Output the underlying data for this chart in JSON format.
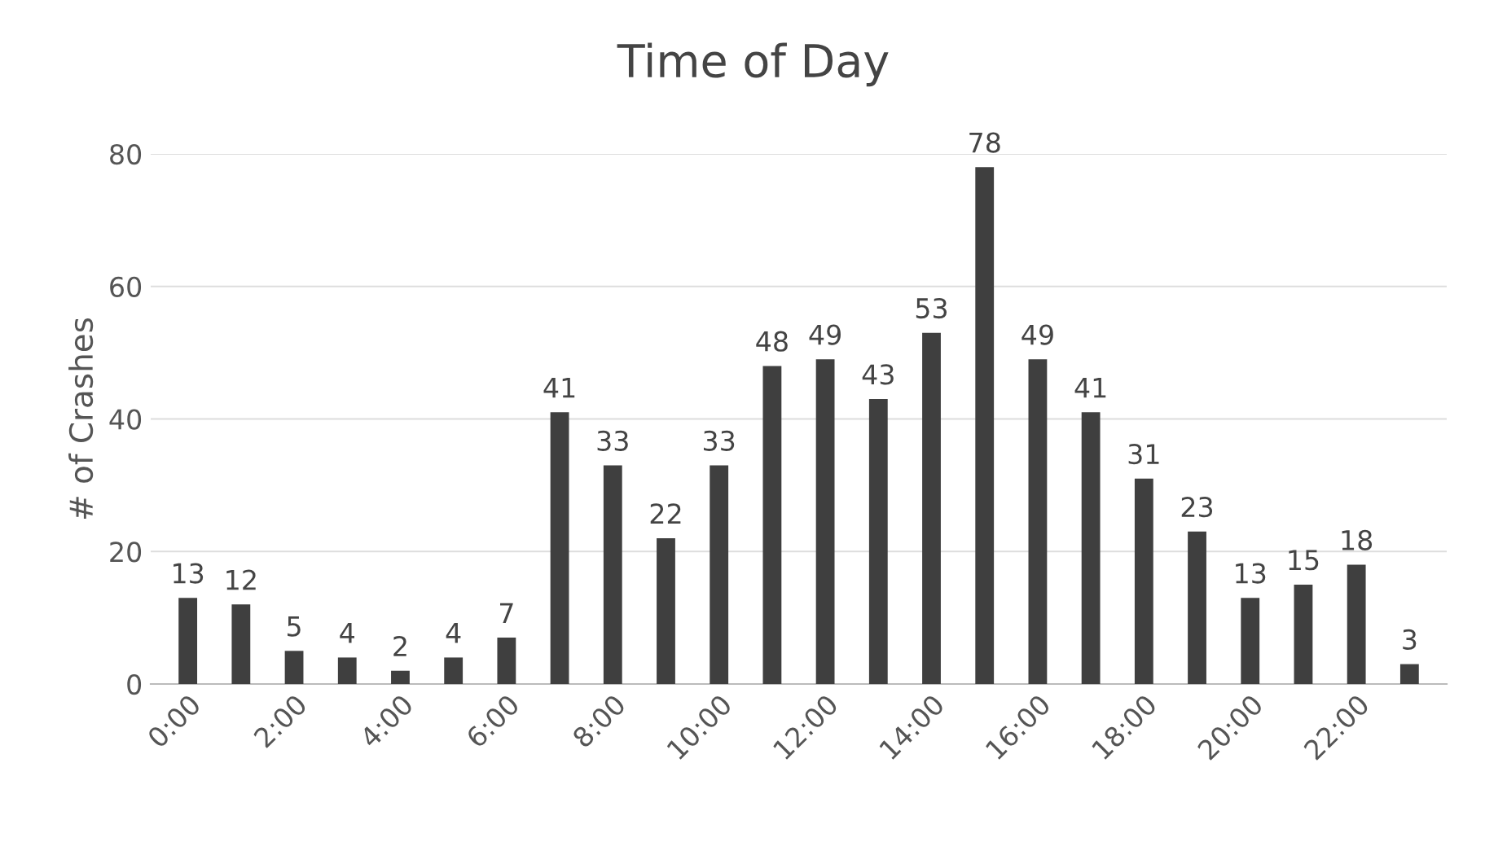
{
  "chart_data": {
    "type": "bar",
    "title": "Time of Day",
    "ylabel": "# of Crashes",
    "categories": [
      "0:00",
      null,
      "2:00",
      null,
      "4:00",
      null,
      "6:00",
      null,
      "8:00",
      null,
      "10:00",
      null,
      "12:00",
      null,
      "14:00",
      null,
      "16:00",
      null,
      "18:00",
      null,
      "20:00",
      null,
      "22:00",
      null
    ],
    "values": [
      13,
      12,
      5,
      4,
      2,
      4,
      7,
      41,
      33,
      22,
      33,
      48,
      49,
      43,
      53,
      78,
      49,
      41,
      31,
      23,
      13,
      15,
      18,
      3
    ],
    "color": "#3f3f3f",
    "ylim": [
      0,
      80
    ],
    "yticks": [
      0,
      20,
      40,
      60,
      80
    ],
    "grid": "y",
    "data_labels": true,
    "legend": false
  }
}
